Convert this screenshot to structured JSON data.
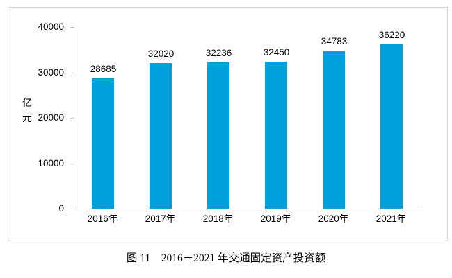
{
  "figure": {
    "caption": "图 11　2016－2021 年交通固定资产投资额"
  },
  "chart_data": {
    "type": "bar",
    "title": "",
    "categories": [
      "2016年",
      "2017年",
      "2018年",
      "2019年",
      "2020年",
      "2021年"
    ],
    "values": [
      28685,
      32020,
      32236,
      32450,
      34783,
      36220
    ],
    "xlabel": "",
    "ylabel": "亿元",
    "ylim": [
      0,
      40000
    ],
    "yticks": [
      0,
      10000,
      20000,
      30000,
      40000
    ],
    "grid": false,
    "legend": "none",
    "data_labels": true,
    "bar_color": "#00a0dc",
    "axis_color": "#bfbfbf",
    "frame_border_color": "#d6d6d6",
    "text_color": "#000000"
  }
}
